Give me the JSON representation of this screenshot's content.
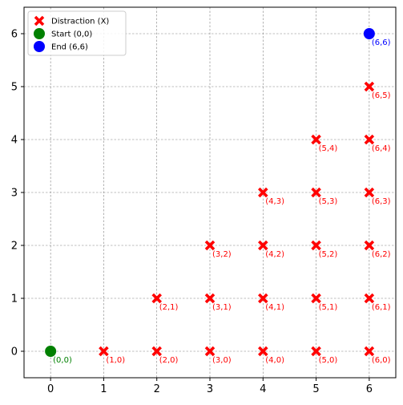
{
  "chart_data": {
    "type": "scatter",
    "title": "",
    "xlabel": "",
    "ylabel": "",
    "xlim": [
      -0.5,
      6.5
    ],
    "ylim": [
      -0.5,
      6.5
    ],
    "xticks": [
      0,
      1,
      2,
      3,
      4,
      5,
      6
    ],
    "yticks": [
      0,
      1,
      2,
      3,
      4,
      5,
      6
    ],
    "grid": true,
    "legend": {
      "placement": "top-left",
      "entries": [
        {
          "label": "Distraction (X)",
          "marker": "X",
          "color": "#ff0000"
        },
        {
          "label": "Start (0,0)",
          "marker": "circle",
          "color": "#008000"
        },
        {
          "label": "End (6,6)",
          "marker": "circle",
          "color": "#0000ff"
        }
      ]
    },
    "series": [
      {
        "name": "Distraction (X)",
        "marker": "X",
        "color": "#ff0000",
        "points": [
          {
            "x": 1,
            "y": 0,
            "label": "(1,0)"
          },
          {
            "x": 2,
            "y": 0,
            "label": "(2,0)"
          },
          {
            "x": 3,
            "y": 0,
            "label": "(3,0)"
          },
          {
            "x": 4,
            "y": 0,
            "label": "(4,0)"
          },
          {
            "x": 5,
            "y": 0,
            "label": "(5,0)"
          },
          {
            "x": 6,
            "y": 0,
            "label": "(6,0)"
          },
          {
            "x": 2,
            "y": 1,
            "label": "(2,1)"
          },
          {
            "x": 3,
            "y": 1,
            "label": "(3,1)"
          },
          {
            "x": 4,
            "y": 1,
            "label": "(4,1)"
          },
          {
            "x": 5,
            "y": 1,
            "label": "(5,1)"
          },
          {
            "x": 6,
            "y": 1,
            "label": "(6,1)"
          },
          {
            "x": 3,
            "y": 2,
            "label": "(3,2)"
          },
          {
            "x": 4,
            "y": 2,
            "label": "(4,2)"
          },
          {
            "x": 5,
            "y": 2,
            "label": "(5,2)"
          },
          {
            "x": 6,
            "y": 2,
            "label": "(6,2)"
          },
          {
            "x": 4,
            "y": 3,
            "label": "(4,3)"
          },
          {
            "x": 5,
            "y": 3,
            "label": "(5,3)"
          },
          {
            "x": 6,
            "y": 3,
            "label": "(6,3)"
          },
          {
            "x": 5,
            "y": 4,
            "label": "(5,4)"
          },
          {
            "x": 6,
            "y": 4,
            "label": "(6,4)"
          },
          {
            "x": 6,
            "y": 5,
            "label": "(6,5)"
          }
        ]
      },
      {
        "name": "Start (0,0)",
        "marker": "circle",
        "color": "#008000",
        "points": [
          {
            "x": 0,
            "y": 0,
            "label": "(0,0)"
          }
        ]
      },
      {
        "name": "End (6,6)",
        "marker": "circle",
        "color": "#0000ff",
        "points": [
          {
            "x": 6,
            "y": 6,
            "label": "(6,6)"
          }
        ]
      }
    ]
  }
}
